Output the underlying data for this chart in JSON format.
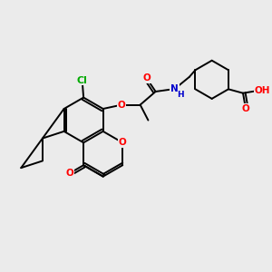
{
  "background_color": "#ebebeb",
  "fig_size": [
    3.0,
    3.0
  ],
  "dpi": 100,
  "atom_colors": {
    "O": "#ff0000",
    "N": "#0000cc",
    "Cl": "#00aa00",
    "H": "#000000"
  },
  "bond_color": "#000000",
  "bond_width": 1.4,
  "font_size_atoms": 7.5
}
